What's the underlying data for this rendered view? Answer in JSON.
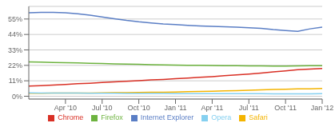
{
  "chart_data": {
    "type": "line",
    "x": [
      0,
      1,
      2,
      3,
      4,
      5,
      6,
      7,
      8,
      9,
      10,
      11,
      12,
      13,
      14,
      15,
      16,
      17,
      18,
      19,
      20,
      21,
      22,
      23,
      24
    ],
    "series": [
      {
        "name": "Internet Explorer",
        "color": "#5a7ec5",
        "values": [
          59.5,
          59.7,
          59.8,
          59.5,
          58.8,
          57.8,
          56.5,
          55.2,
          54.0,
          53.0,
          52.2,
          51.5,
          51.0,
          50.5,
          50.1,
          49.8,
          49.5,
          49.2,
          48.8,
          48.4,
          47.5,
          46.8,
          46.2,
          48.0,
          49.2
        ]
      },
      {
        "name": "Firefox",
        "color": "#6db33f",
        "values": [
          24.5,
          24.3,
          24.1,
          23.9,
          23.7,
          23.5,
          23.3,
          23.1,
          22.9,
          22.7,
          22.5,
          22.3,
          22.2,
          22.1,
          22.0,
          21.9,
          21.8,
          21.7,
          21.6,
          21.6,
          21.5,
          21.5,
          21.6,
          21.7,
          21.8
        ]
      },
      {
        "name": "Chrome",
        "color": "#d93025",
        "values": [
          7.2,
          7.6,
          8.0,
          8.4,
          8.9,
          9.3,
          9.8,
          10.2,
          10.7,
          11.1,
          11.6,
          12.0,
          12.5,
          13.0,
          13.5,
          14.0,
          14.6,
          15.2,
          15.8,
          16.5,
          17.3,
          18.1,
          18.9,
          19.3,
          19.8
        ]
      },
      {
        "name": "Safari",
        "color": "#f4b400",
        "values": [
          2.1,
          2.1,
          2.2,
          2.2,
          2.3,
          2.3,
          2.4,
          2.5,
          2.6,
          2.7,
          2.8,
          2.9,
          3.0,
          3.2,
          3.4,
          3.6,
          3.8,
          4.0,
          4.3,
          4.5,
          4.8,
          5.0,
          5.2,
          5.3,
          5.5
        ]
      },
      {
        "name": "Opera",
        "color": "#85d0f0",
        "values": [
          2.4,
          2.3,
          2.3,
          2.2,
          2.2,
          2.1,
          2.1,
          2.1,
          2.0,
          2.0,
          2.0,
          2.0,
          1.9,
          1.9,
          1.9,
          1.9,
          1.8,
          1.8,
          1.8,
          1.8,
          1.7,
          1.7,
          1.7,
          1.7,
          1.8
        ]
      }
    ],
    "xlim": [
      0,
      24
    ],
    "xticks": [
      {
        "value": 3,
        "label": "Apr '10"
      },
      {
        "value": 6,
        "label": "Jul '10"
      },
      {
        "value": 9,
        "label": "Oct '10"
      },
      {
        "value": 12,
        "label": "Jan '11"
      },
      {
        "value": 15,
        "label": "Apr '11"
      },
      {
        "value": 18,
        "label": "Jul '11"
      },
      {
        "value": 21,
        "label": "Oct '11"
      },
      {
        "value": 24,
        "label": "Jan '12"
      }
    ],
    "ylim": [
      -2,
      64
    ],
    "yticks": [
      {
        "value": 0,
        "label": "0%"
      },
      {
        "value": 11,
        "label": "11%"
      },
      {
        "value": 22,
        "label": "22%"
      },
      {
        "value": 33,
        "label": "33%"
      },
      {
        "value": 44,
        "label": "44%"
      },
      {
        "value": 55,
        "label": "55%"
      }
    ],
    "grid": "y",
    "legend": "bottom"
  }
}
